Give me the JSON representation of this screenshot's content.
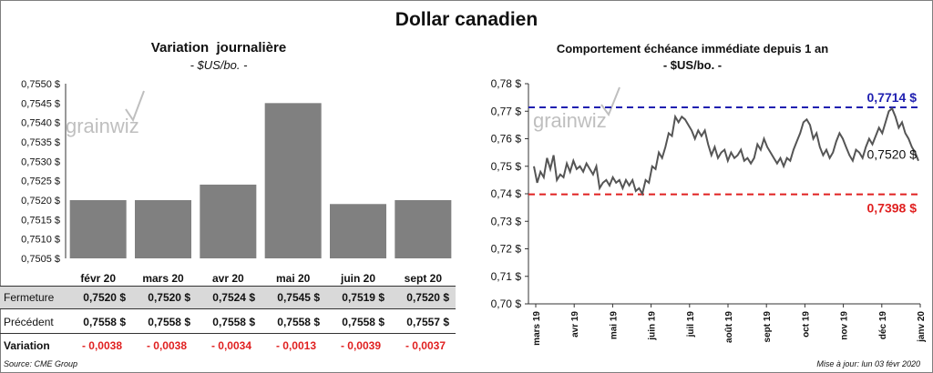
{
  "title": "Dollar canadien",
  "left_panel": {
    "title": "Variation  journalière",
    "subtitle": "- $US/bo. -",
    "watermark": "grainwiz"
  },
  "right_panel": {
    "title": "Comportement échéance immédiate depuis 1 an",
    "subtitle": "- $US/bo. -",
    "watermark": "grainwiz"
  },
  "table": {
    "rows": [
      {
        "label": "Fermeture",
        "values": [
          "0,7520  $",
          "0,7520  $",
          "0,7524  $",
          "0,7545  $",
          "0,7519  $",
          "0,7520  $"
        ]
      },
      {
        "label": "Précédent",
        "values": [
          "0,7558  $",
          "0,7558  $",
          "0,7558  $",
          "0,7558  $",
          "0,7558  $",
          "0,7557  $"
        ]
      },
      {
        "label": "Variation",
        "values": [
          "- 0,0038",
          "- 0,0038",
          "- 0,0034",
          "- 0,0013",
          "- 0,0039",
          "- 0,0037"
        ]
      }
    ]
  },
  "footer": {
    "source": "Source: CME Group",
    "updated": "Mise à jour: lun 03 févr 2020"
  },
  "colors": {
    "bar": "#808080",
    "line": "#555555",
    "high": "#1f1fb0",
    "low": "#e02020"
  },
  "chart_data": [
    {
      "type": "bar",
      "title": "Variation  journalière",
      "categories": [
        "févr 20",
        "mars 20",
        "avr 20",
        "mai 20",
        "juin 20",
        "sept 20"
      ],
      "values": [
        0.752,
        0.752,
        0.7524,
        0.7545,
        0.7519,
        0.752
      ],
      "ylim": [
        0.7505,
        0.755
      ],
      "yticks": [
        "0,7505 $",
        "0,7510 $",
        "0,7515 $",
        "0,7520 $",
        "0,7525 $",
        "0,7530 $",
        "0,7535 $",
        "0,7540 $",
        "0,7545 $",
        "0,7550 $"
      ]
    },
    {
      "type": "line",
      "title": "Comportement échéance immédiate depuis 1 an",
      "ylim": [
        0.7,
        0.78
      ],
      "yticks": [
        "0,70 $",
        "0,71 $",
        "0,72 $",
        "0,73 $",
        "0,74 $",
        "0,75 $",
        "0,76 $",
        "0,77 $",
        "0,78 $"
      ],
      "xticks": [
        "mars 19",
        "avr 19",
        "mai 19",
        "juin 19",
        "juil 19",
        "août 19",
        "sept 19",
        "oct 19",
        "nov 19",
        "déc 19",
        "janv 20"
      ],
      "high": {
        "value": 0.7714,
        "label": "0,7714  $"
      },
      "low": {
        "value": 0.7398,
        "label": "0,7398  $"
      },
      "last": {
        "value": 0.752,
        "label": "0,7520 $"
      },
      "series": [
        {
          "name": "Dollar canadien",
          "values": [
            0.75,
            0.744,
            0.748,
            0.746,
            0.753,
            0.749,
            0.754,
            0.745,
            0.747,
            0.746,
            0.751,
            0.748,
            0.752,
            0.749,
            0.75,
            0.748,
            0.751,
            0.749,
            0.747,
            0.75,
            0.742,
            0.744,
            0.745,
            0.743,
            0.746,
            0.744,
            0.745,
            0.742,
            0.745,
            0.743,
            0.745,
            0.741,
            0.742,
            0.74,
            0.745,
            0.744,
            0.75,
            0.749,
            0.755,
            0.753,
            0.757,
            0.762,
            0.761,
            0.768,
            0.766,
            0.768,
            0.767,
            0.765,
            0.763,
            0.76,
            0.763,
            0.761,
            0.763,
            0.758,
            0.754,
            0.757,
            0.753,
            0.755,
            0.756,
            0.752,
            0.755,
            0.753,
            0.754,
            0.756,
            0.752,
            0.753,
            0.751,
            0.753,
            0.758,
            0.756,
            0.76,
            0.757,
            0.755,
            0.753,
            0.751,
            0.753,
            0.75,
            0.753,
            0.752,
            0.756,
            0.759,
            0.762,
            0.766,
            0.767,
            0.765,
            0.76,
            0.762,
            0.757,
            0.754,
            0.756,
            0.753,
            0.755,
            0.759,
            0.762,
            0.76,
            0.757,
            0.754,
            0.752,
            0.756,
            0.755,
            0.753,
            0.757,
            0.76,
            0.758,
            0.761,
            0.764,
            0.762,
            0.766,
            0.77,
            0.771,
            0.768,
            0.764,
            0.766,
            0.762,
            0.76,
            0.757,
            0.755,
            0.752
          ]
        }
      ]
    }
  ]
}
